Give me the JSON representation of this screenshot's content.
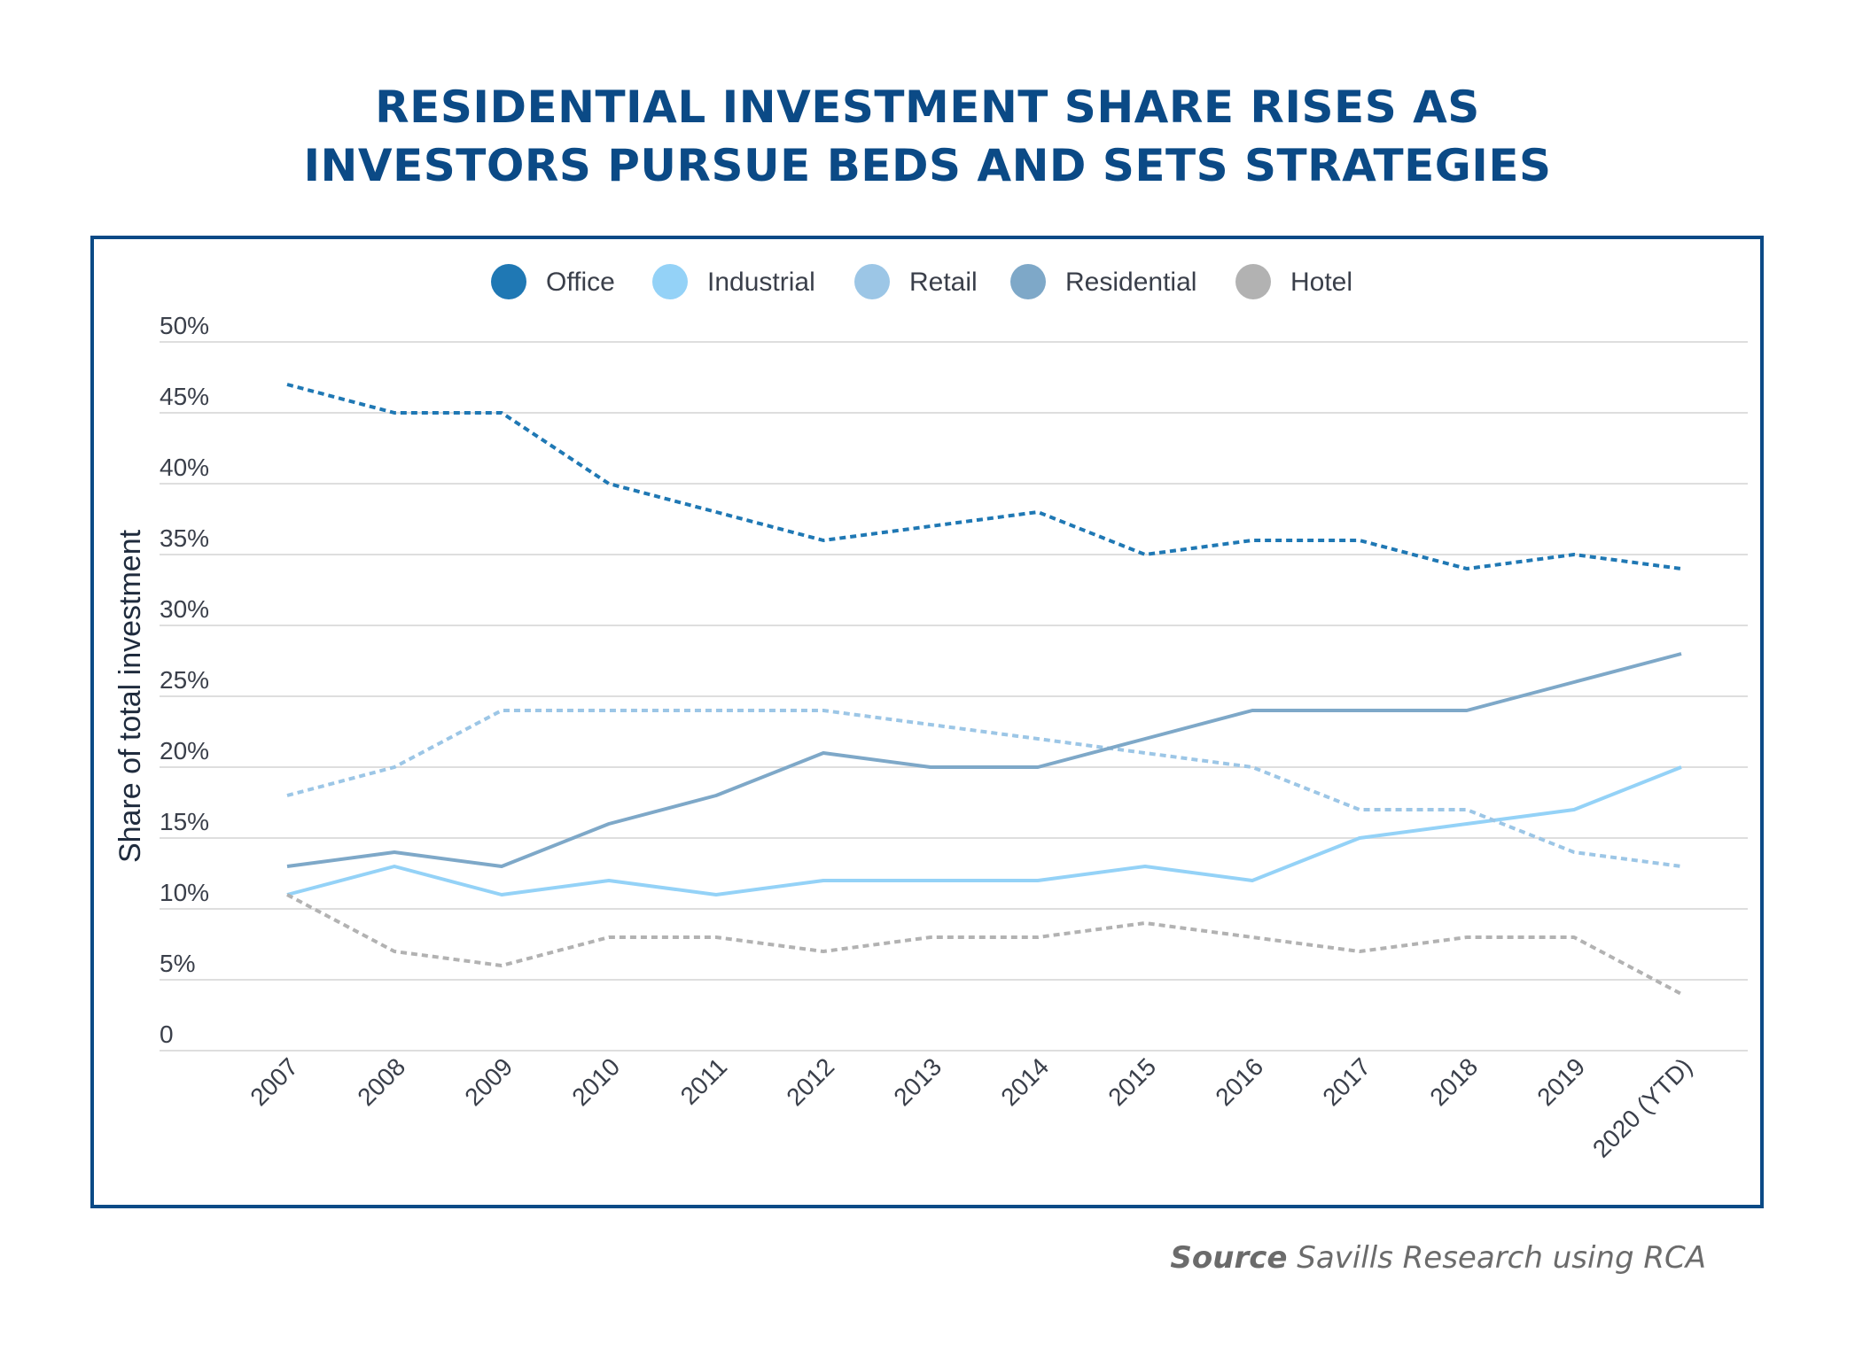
{
  "title": {
    "line1": "RESIDENTIAL INVESTMENT SHARE RISES AS",
    "line2": "INVESTORS PURSUE BEDS AND SETS STRATEGIES"
  },
  "source": {
    "label": "Source",
    "text": "Savills Research using RCA"
  },
  "chart_data": {
    "type": "line",
    "title": "RESIDENTIAL INVESTMENT SHARE RISES AS INVESTORS PURSUE BEDS AND SETS STRATEGIES",
    "xlabel": "",
    "ylabel": "Share of total investment",
    "ylim": [
      0,
      50
    ],
    "yticks": [
      0,
      5,
      10,
      15,
      20,
      25,
      30,
      35,
      40,
      45,
      50
    ],
    "ytick_labels": [
      "0",
      "5%",
      "10%",
      "15%",
      "20%",
      "25%",
      "30%",
      "35%",
      "40%",
      "45%",
      "50%"
    ],
    "grid": true,
    "legend_position": "top-center",
    "categories": [
      "2007",
      "2008",
      "2009",
      "2010",
      "2011",
      "2012",
      "2013",
      "2014",
      "2015",
      "2016",
      "2017",
      "2018",
      "2019",
      "2020 (YTD)"
    ],
    "series": [
      {
        "name": "Office",
        "color": "#1f78b4",
        "style": "dashed",
        "values": [
          47,
          45,
          45,
          40,
          38,
          36,
          37,
          38,
          35,
          36,
          36,
          34,
          35,
          34
        ]
      },
      {
        "name": "Industrial",
        "color": "#94d2f7",
        "style": "solid",
        "values": [
          11,
          13,
          11,
          12,
          11,
          12,
          12,
          12,
          13,
          12,
          15,
          16,
          17,
          20
        ]
      },
      {
        "name": "Retail",
        "color": "#9cc6e6",
        "style": "dashed",
        "values": [
          18,
          20,
          24,
          24,
          24,
          24,
          23,
          22,
          21,
          20,
          17,
          17,
          14,
          13
        ]
      },
      {
        "name": "Residential",
        "color": "#7ea8c8",
        "style": "solid",
        "values": [
          13,
          14,
          13,
          16,
          18,
          21,
          20,
          20,
          22,
          24,
          24,
          24,
          26,
          28
        ]
      },
      {
        "name": "Hotel",
        "color": "#b2b2b2",
        "style": "dashed",
        "values": [
          11,
          7,
          6,
          8,
          8,
          7,
          8,
          8,
          9,
          8,
          7,
          8,
          8,
          4
        ]
      }
    ]
  }
}
